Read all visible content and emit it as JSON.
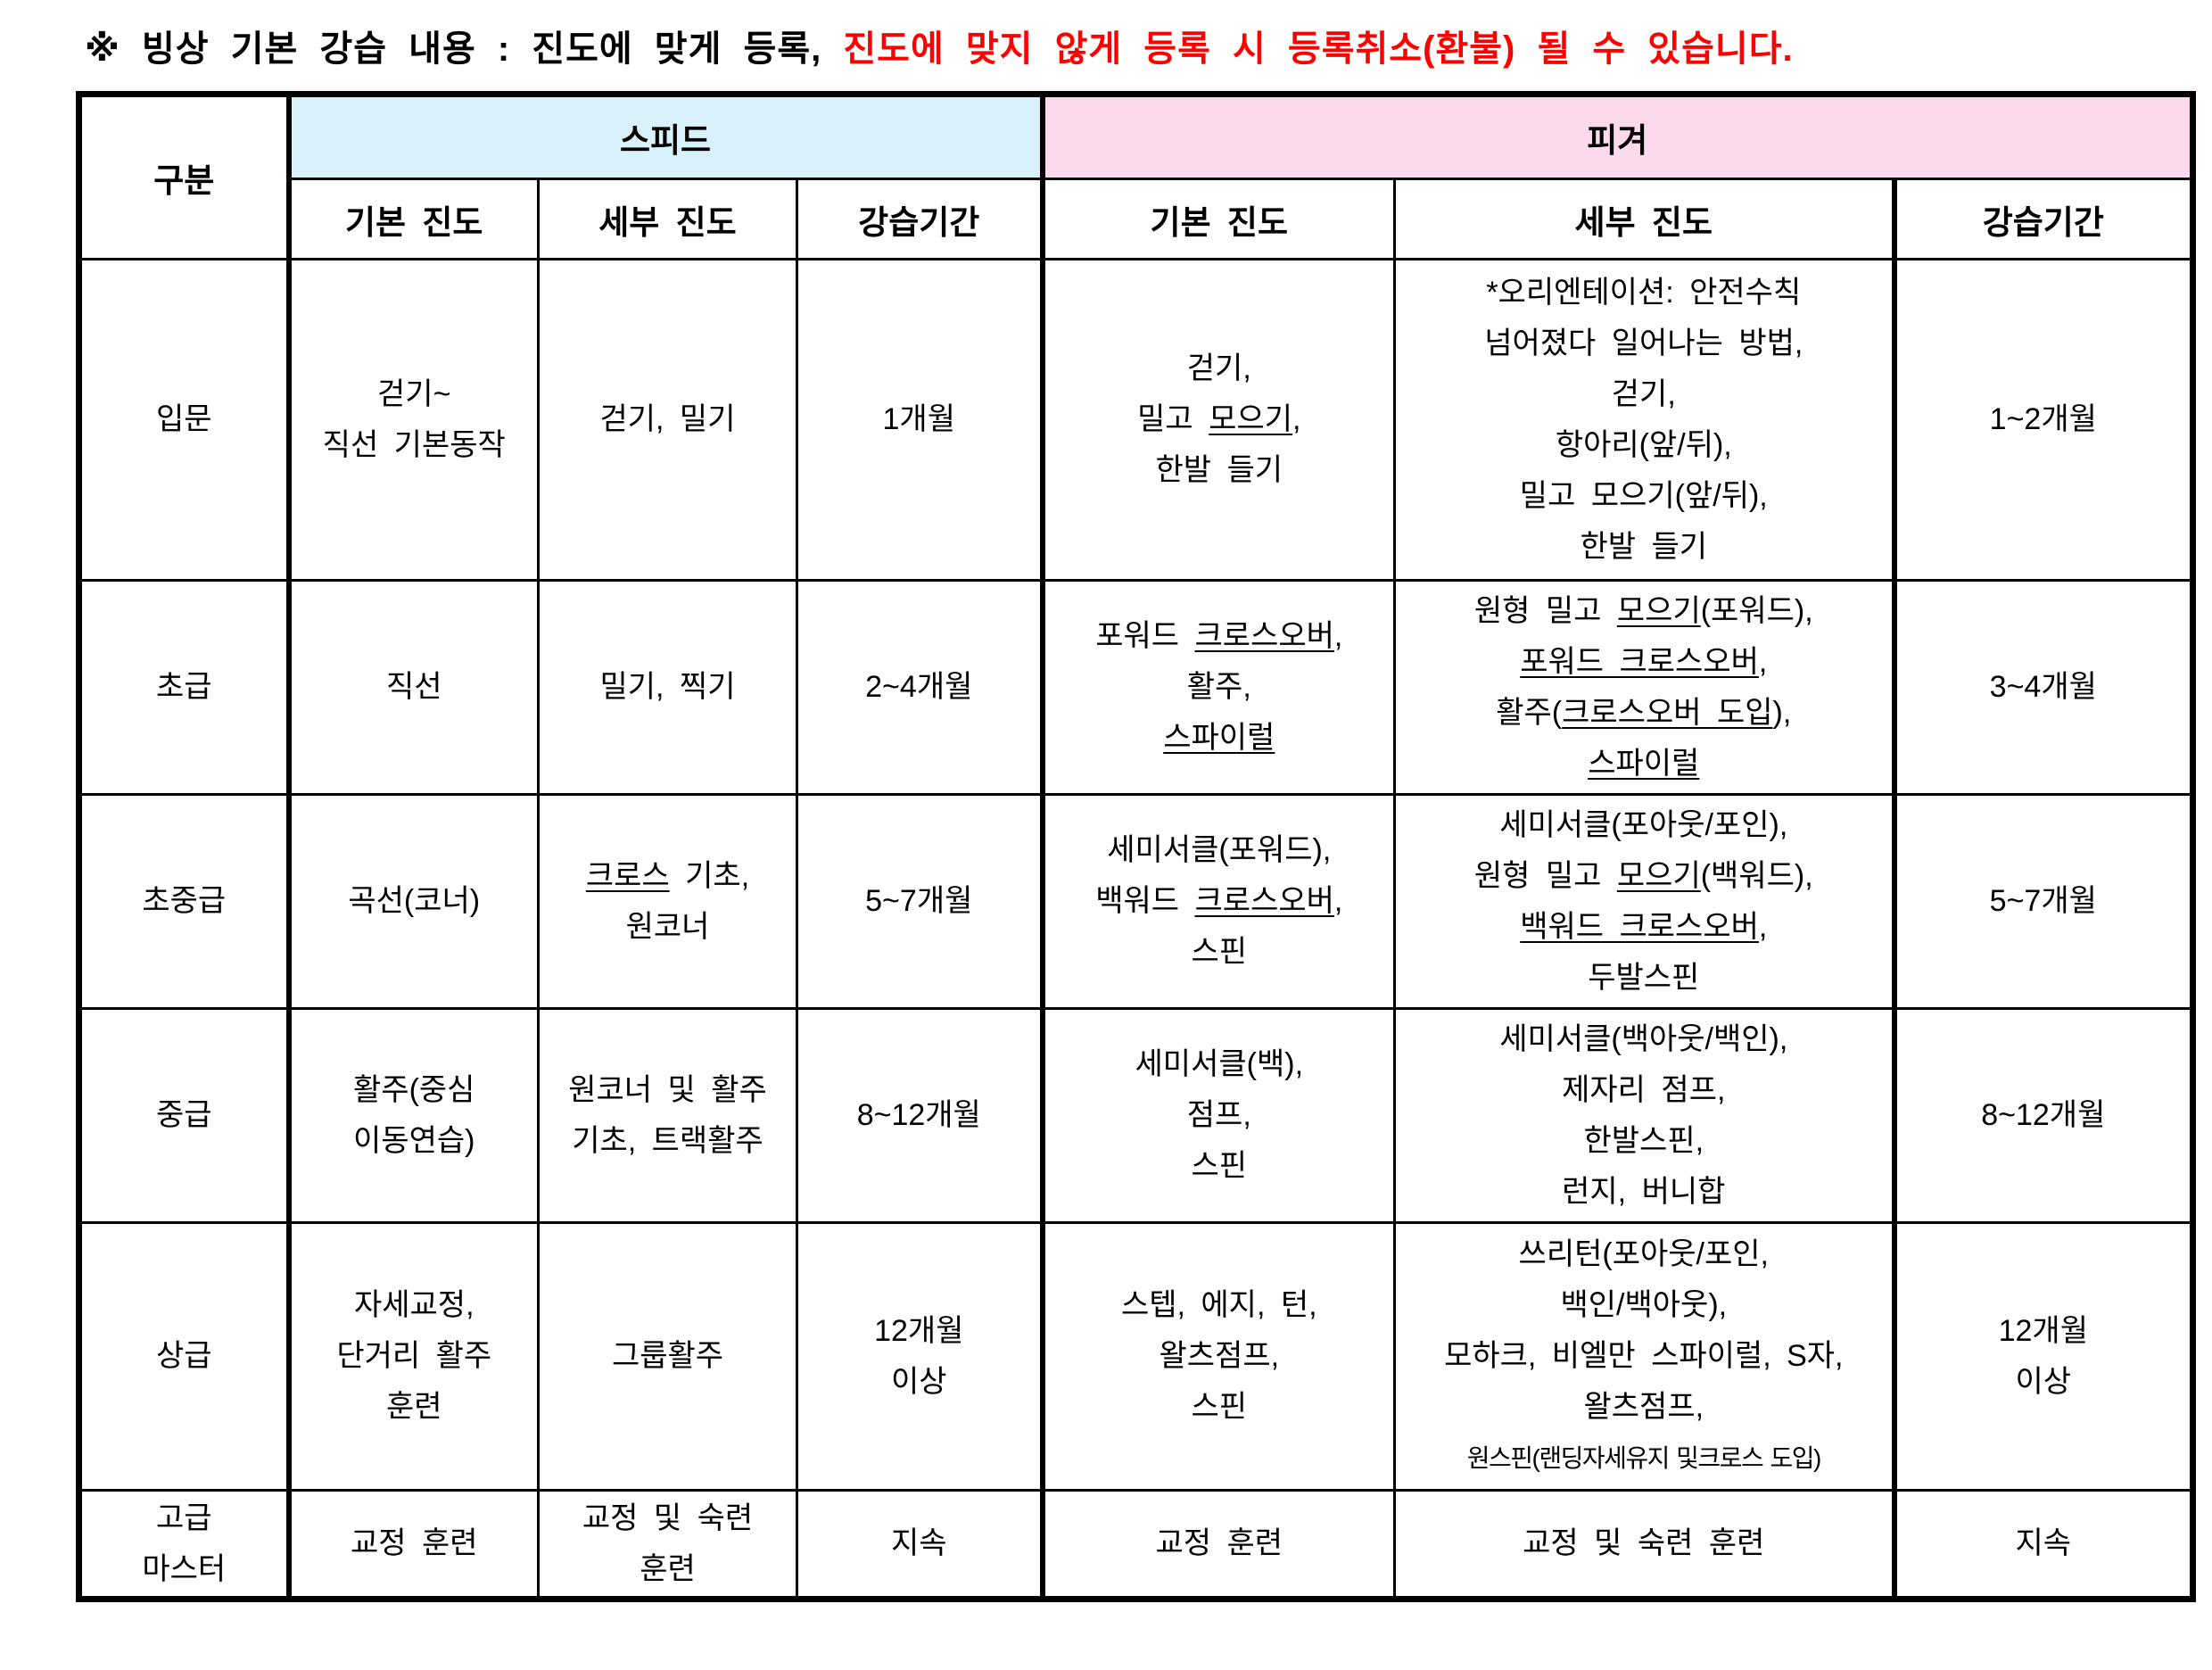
{
  "title": {
    "black_part": "※ 빙상 기본 강습 내용 : 진도에 맞게 등록, ",
    "red_part": "진도에 맞지 않게 등록 시 등록취소(환불) 될 수 있습니다.",
    "red_color": "#ff0000"
  },
  "table": {
    "corner_header": "구분",
    "groups": [
      {
        "label": "스피드",
        "bg": "#d9f1f8"
      },
      {
        "label": "피겨",
        "bg": "#fcd9ec"
      }
    ],
    "sub_headers": [
      "기본 진도",
      "세부 진도",
      "강습기간"
    ],
    "rows": [
      {
        "id": "intro",
        "category": [
          "입문"
        ],
        "speed": {
          "basic": [
            "걷기~",
            "직선 기본동작"
          ],
          "detail": [
            "걷기, 밀기"
          ],
          "period": [
            "1개월"
          ]
        },
        "figure": {
          "basic": [
            "걷기,",
            "밀고 __모으기__,",
            "한발 들기"
          ],
          "detail": [
            "*오리엔테이션: 안전수칙",
            "넘어졌다 일어나는 방법,",
            "걷기,",
            "항아리(앞/뒤),",
            "밀고 모으기(앞/뒤),",
            "한발 들기"
          ],
          "period": [
            "1~2개월"
          ]
        }
      },
      {
        "id": "beginner",
        "category": [
          "초급"
        ],
        "speed": {
          "basic": [
            "직선"
          ],
          "detail": [
            "밀기, 찍기"
          ],
          "period": [
            "2~4개월"
          ]
        },
        "figure": {
          "basic": [
            "포워드 __크로스오버__,",
            "활주,",
            "__스파이럴__"
          ],
          "detail": [
            "원형 밀고 __모으기__(포워드),",
            "__포워드 크로스오버__,",
            "활주(__크로스오버 도입__),",
            "__스파이럴__"
          ],
          "period": [
            "3~4개월"
          ]
        }
      },
      {
        "id": "lower-intermediate",
        "category": [
          "초중급"
        ],
        "speed": {
          "basic": [
            "곡선(코너)"
          ],
          "detail": [
            "__크로스__ 기초,",
            "원코너"
          ],
          "period": [
            "5~7개월"
          ]
        },
        "figure": {
          "basic": [
            "세미서클(포워드),",
            "백워드 __크로스오버__,",
            "스핀"
          ],
          "detail": [
            "세미서클(포아웃/포인),",
            "원형 밀고 __모으기__(백워드),",
            "__백워드 크로스오버__,",
            "두발스핀"
          ],
          "period": [
            "5~7개월"
          ]
        }
      },
      {
        "id": "intermediate",
        "category": [
          "중급"
        ],
        "speed": {
          "basic": [
            "활주(중심",
            "이동연습)"
          ],
          "detail": [
            "원코너 및 활주",
            "기초, 트랙활주"
          ],
          "period": [
            "8~12개월"
          ]
        },
        "figure": {
          "basic": [
            "세미서클(백),",
            "점프,",
            "스핀"
          ],
          "detail": [
            "세미서클(백아웃/백인),",
            "제자리 점프,",
            "한발스핀,",
            "런지, 버니합"
          ],
          "period": [
            "8~12개월"
          ]
        }
      },
      {
        "id": "advanced",
        "category": [
          "상급"
        ],
        "speed": {
          "basic": [
            "자세교정,",
            "단거리 활주",
            "훈련"
          ],
          "detail": [
            "그룹활주"
          ],
          "period": [
            "12개월",
            "이상"
          ]
        },
        "figure": {
          "basic": [
            "스텝, 에지, 턴,",
            "왈츠점프,",
            "스핀"
          ],
          "detail": [
            "쓰리턴(포아웃/포인,",
            "백인/백아웃),",
            "모하크, 비엘만 스파이럴, S자,",
            "왈츠점프,",
            "원스핀(랜딩자세유지 및크로스 도입)"
          ],
          "period": [
            "12개월",
            "이상"
          ]
        }
      },
      {
        "id": "master",
        "category": [
          "고급",
          "마스터"
        ],
        "speed": {
          "basic": [
            "교정 훈련"
          ],
          "detail": [
            "교정 및 숙련",
            "훈련"
          ],
          "period": [
            "지속"
          ]
        },
        "figure": {
          "basic": [
            "교정 훈련"
          ],
          "detail": [
            "교정 및 숙련 훈련"
          ],
          "period": [
            "지속"
          ]
        }
      }
    ]
  }
}
